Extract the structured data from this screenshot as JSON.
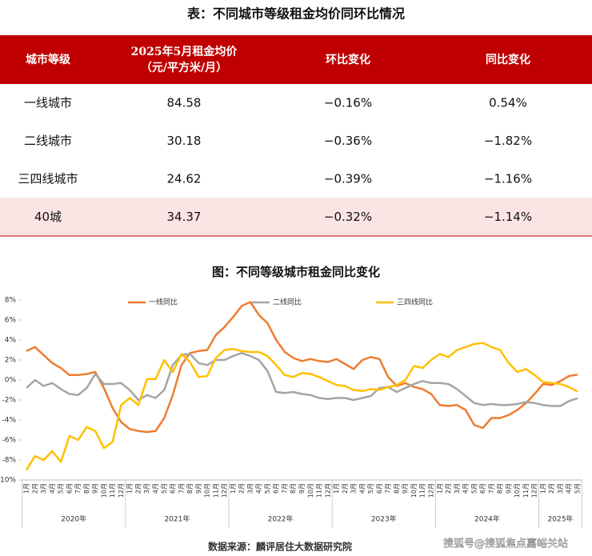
{
  "table": {
    "title": "表：不同城市等级租金均价同环比情况",
    "columns": [
      "城市等级",
      [
        "2025年5月租金均价",
        "（元/平方米/月）"
      ],
      "环比变化",
      "同比变化"
    ],
    "rows": [
      [
        "一线城市",
        "84.58",
        "−0.16%",
        "0.54%"
      ],
      [
        "二线城市",
        "30.18",
        "−0.36%",
        "−1.82%"
      ],
      [
        "三四线城市",
        "24.62",
        "−0.39%",
        "−1.16%"
      ],
      [
        "40城",
        "34.37",
        "−0.32%",
        "−1.14%"
      ]
    ]
  },
  "chart_data": {
    "type": "line",
    "title": "图：不同等级城市租金同比变化",
    "categories": [
      "1月",
      "2月",
      "3月",
      "4月",
      "5月",
      "6月",
      "7月",
      "8月",
      "9月",
      "10月",
      "11月",
      "12月",
      "1月",
      "2月",
      "3月",
      "4月",
      "5月",
      "6月",
      "7月",
      "8月",
      "9月",
      "10月",
      "11月",
      "12月",
      "1月",
      "2月",
      "3月",
      "4月",
      "5月",
      "6月",
      "7月",
      "8月",
      "9月",
      "10月",
      "11月",
      "12月",
      "1月",
      "2月",
      "3月",
      "4月",
      "5月",
      "6月",
      "7月",
      "8月",
      "9月",
      "10月",
      "11月",
      "12月",
      "1月",
      "2月",
      "3月",
      "4月",
      "5月",
      "6月",
      "7月",
      "8月",
      "9月",
      "10月",
      "11月",
      "12月",
      "1月",
      "2月",
      "3月",
      "4月",
      "5月"
    ],
    "x_groups": [
      "2020年",
      "2021年",
      "2022年",
      "2023年",
      "2024年",
      "2025年"
    ],
    "series": [
      {
        "name": "一线同比",
        "color": "#ed7d31",
        "values": [
          2.9,
          3.3,
          2.5,
          1.7,
          1.2,
          0.5,
          0.5,
          0.6,
          0.8,
          -0.8,
          -2.8,
          -4.2,
          -4.9,
          -5.1,
          -5.2,
          -5.1,
          -3.8,
          -1.5,
          1.5,
          2.7,
          2.9,
          3.0,
          4.5,
          5.3,
          6.3,
          7.4,
          7.8,
          6.5,
          5.7,
          4.0,
          2.8,
          2.2,
          1.9,
          2.1,
          1.9,
          1.8,
          2.1,
          1.6,
          1.1,
          2.0,
          2.3,
          2.1,
          0.3,
          -0.6,
          -0.3,
          -0.7,
          -0.9,
          -1.4,
          -2.5,
          -2.6,
          -2.5,
          -3.0,
          -4.5,
          -4.8,
          -3.8,
          -3.8,
          -3.5,
          -3.0,
          -2.3,
          -1.4,
          -0.4,
          -0.5,
          -0.1,
          0.4,
          0.54
        ]
      },
      {
        "name": "二线同比",
        "color": "#a5a5a5",
        "values": [
          -0.8,
          0.0,
          -0.6,
          -0.3,
          -0.9,
          -1.4,
          -1.5,
          -0.8,
          0.6,
          -0.4,
          -0.4,
          -0.3,
          -1.0,
          -2.0,
          -1.5,
          -1.8,
          -1.0,
          1.5,
          2.5,
          2.6,
          1.7,
          1.5,
          2.0,
          2.0,
          2.4,
          2.7,
          2.4,
          2.0,
          0.9,
          -1.2,
          -1.3,
          -1.2,
          -1.4,
          -1.5,
          -1.8,
          -1.9,
          -1.8,
          -1.8,
          -2.0,
          -1.8,
          -1.6,
          -0.8,
          -0.7,
          -1.2,
          -0.8,
          -0.4,
          -0.1,
          -0.3,
          -0.3,
          -0.4,
          -0.9,
          -1.6,
          -2.3,
          -2.5,
          -2.4,
          -2.5,
          -2.5,
          -2.4,
          -2.2,
          -2.3,
          -2.5,
          -2.6,
          -2.6,
          -2.1,
          -1.82
        ]
      },
      {
        "name": "三四线同比",
        "color": "#ffc000",
        "values": [
          -9.0,
          -7.6,
          -8.0,
          -7.1,
          -8.2,
          -5.6,
          -6.0,
          -4.7,
          -5.1,
          -6.8,
          -6.2,
          -2.5,
          -1.8,
          -2.5,
          0.1,
          0.1,
          2.0,
          0.8,
          2.6,
          1.8,
          0.3,
          0.4,
          2.2,
          3.0,
          3.1,
          2.9,
          2.8,
          2.8,
          2.4,
          1.5,
          0.5,
          0.3,
          0.7,
          0.6,
          0.3,
          -0.1,
          -0.5,
          -0.6,
          -1.0,
          -1.1,
          -0.9,
          -1.0,
          -0.7,
          -0.5,
          0.0,
          1.4,
          1.2,
          2.0,
          2.6,
          2.3,
          3.0,
          3.3,
          3.6,
          3.7,
          3.3,
          3.0,
          1.7,
          0.8,
          1.1,
          0.5,
          -0.2,
          -0.3,
          -0.4,
          -0.7,
          -1.16
        ]
      }
    ],
    "ylim": [
      -10,
      8
    ],
    "yticks": [
      {
        "value": -10,
        "label": "-10%"
      },
      {
        "value": -8,
        "label": "-8%"
      },
      {
        "value": -6,
        "label": "-6%"
      },
      {
        "value": -4,
        "label": "-4%"
      },
      {
        "value": -2,
        "label": "-2%"
      },
      {
        "value": 0,
        "label": "0%"
      },
      {
        "value": 2,
        "label": "2%"
      },
      {
        "value": 4,
        "label": "4%"
      },
      {
        "value": 6,
        "label": "6%"
      },
      {
        "value": 8,
        "label": "8%"
      }
    ],
    "grid": false,
    "legend": "top",
    "source": "数据来源：麟评居住大数据研究院"
  },
  "watermark": "搜狐号@搜狐焦点嘉峪关站"
}
